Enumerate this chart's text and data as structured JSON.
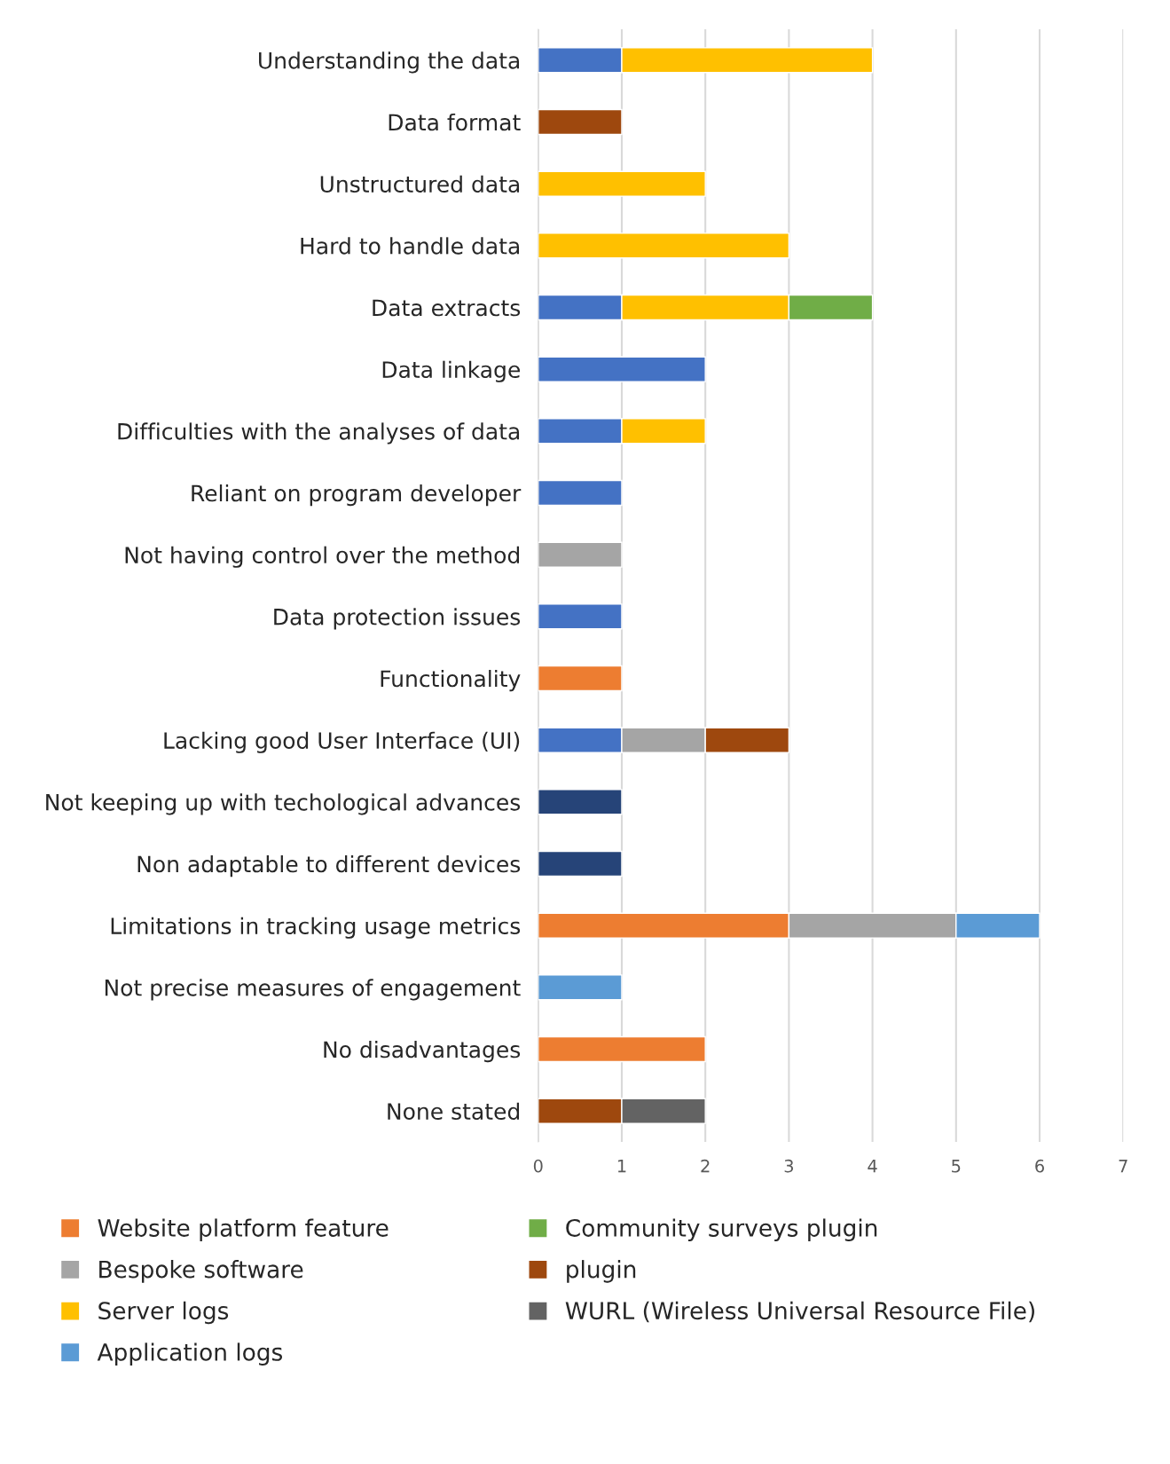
{
  "chart_data": {
    "type": "bar",
    "orientation": "horizontal",
    "stacked": true,
    "categories": [
      "Understanding the data",
      "Data format",
      "Unstructured data",
      "Hard to handle data",
      "Data extracts",
      "Data linkage",
      "Difficulties with the analyses of data",
      "Reliant on program developer",
      "Not having control over the method",
      "Data protection issues",
      "Functionality",
      "Lacking good User Interface (UI)",
      "Not keeping up with techological advances",
      "Non adaptable to different devices",
      "Limitations in tracking usage metrics",
      "Not precise measures of engagement",
      "No disadvantages",
      "None stated"
    ],
    "series": [
      {
        "color": "#4472c4",
        "values": [
          1,
          null,
          null,
          null,
          1,
          2,
          1,
          1,
          null,
          1,
          null,
          1,
          null,
          null,
          null,
          null,
          null,
          null
        ]
      },
      {
        "name": "Website platform feature",
        "color": "#ed7d31",
        "values": [
          null,
          null,
          null,
          null,
          null,
          null,
          null,
          null,
          null,
          null,
          1,
          null,
          null,
          null,
          3,
          null,
          2,
          null
        ]
      },
      {
        "name": "Bespoke software",
        "color": "#a5a5a5",
        "values": [
          null,
          null,
          null,
          null,
          null,
          null,
          null,
          null,
          1,
          null,
          null,
          1,
          null,
          null,
          2,
          null,
          null,
          null
        ]
      },
      {
        "name": "Server logs",
        "color": "#ffc000",
        "values": [
          3,
          null,
          2,
          3,
          2,
          null,
          1,
          null,
          null,
          null,
          null,
          null,
          null,
          null,
          null,
          null,
          null,
          null
        ]
      },
      {
        "name": "Application logs",
        "color": "#5b9bd5",
        "values": [
          null,
          null,
          null,
          null,
          null,
          null,
          null,
          null,
          null,
          null,
          null,
          null,
          null,
          null,
          1,
          1,
          null,
          null
        ]
      },
      {
        "name": "Community surveys plugin",
        "color": "#70ad47",
        "values": [
          null,
          null,
          null,
          null,
          1,
          null,
          null,
          null,
          null,
          null,
          null,
          null,
          null,
          null,
          null,
          null,
          null,
          null
        ]
      },
      {
        "color": "#264478",
        "values": [
          null,
          null,
          null,
          null,
          null,
          null,
          null,
          null,
          null,
          null,
          null,
          null,
          1,
          1,
          null,
          null,
          null,
          null
        ]
      },
      {
        "name": "plugin",
        "color": "#9e480e",
        "values": [
          null,
          1,
          null,
          null,
          null,
          null,
          null,
          null,
          null,
          null,
          null,
          1,
          null,
          null,
          null,
          null,
          null,
          1
        ]
      },
      {
        "name": "WURL (Wireless Universal Resource File)",
        "color": "#636363",
        "values": [
          null,
          null,
          null,
          null,
          null,
          null,
          null,
          null,
          null,
          null,
          null,
          null,
          null,
          null,
          null,
          null,
          null,
          1
        ]
      }
    ],
    "xlim": [
      0,
      7
    ],
    "xticks": [
      0,
      1,
      2,
      3,
      4,
      5,
      6,
      7
    ],
    "grid": "x",
    "legend": "bottom"
  }
}
